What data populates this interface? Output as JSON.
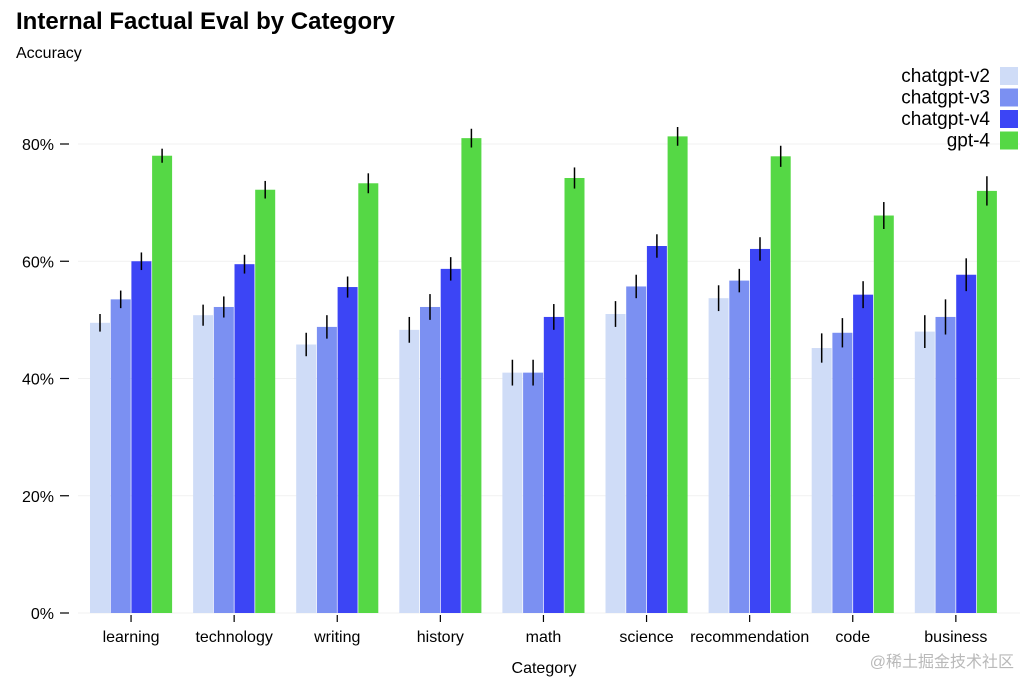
{
  "chart_data": {
    "type": "bar",
    "title": "Internal Factual Eval by Category",
    "ylabel": "Accuracy",
    "xlabel": "Category",
    "ylim": [
      0,
      80
    ],
    "yticks": [
      "0%",
      "20%",
      "40%",
      "60%",
      "80%"
    ],
    "ytick_values": [
      0,
      20,
      40,
      60,
      80
    ],
    "grid": true,
    "legend_position": "top-right",
    "categories": [
      "learning",
      "technology",
      "writing",
      "history",
      "math",
      "science",
      "recommendation",
      "code",
      "business"
    ],
    "series": [
      {
        "name": "chatgpt-v2",
        "color": "#cfdcf7",
        "values": [
          49.5,
          50.8,
          45.8,
          48.3,
          41.0,
          51.0,
          53.7,
          45.2,
          48.0
        ],
        "errors": [
          1.5,
          1.8,
          2.0,
          2.2,
          2.2,
          2.2,
          2.2,
          2.5,
          2.8
        ]
      },
      {
        "name": "chatgpt-v3",
        "color": "#7b90f2",
        "values": [
          53.5,
          52.2,
          48.8,
          52.2,
          41.0,
          55.7,
          56.7,
          47.8,
          50.5
        ],
        "errors": [
          1.5,
          1.8,
          2.0,
          2.2,
          2.2,
          2.0,
          2.0,
          2.5,
          3.0
        ]
      },
      {
        "name": "chatgpt-v4",
        "color": "#3c45f5",
        "values": [
          60.0,
          59.5,
          55.6,
          58.7,
          50.5,
          62.6,
          62.1,
          54.3,
          57.7
        ],
        "errors": [
          1.5,
          1.6,
          1.8,
          2.0,
          2.2,
          2.0,
          2.0,
          2.3,
          2.8
        ]
      },
      {
        "name": "gpt-4",
        "color": "#55d845",
        "values": [
          78.0,
          72.2,
          73.3,
          81.0,
          74.2,
          81.3,
          77.9,
          67.8,
          72.0
        ],
        "errors": [
          1.2,
          1.5,
          1.7,
          1.6,
          1.8,
          1.6,
          1.8,
          2.3,
          2.5
        ]
      }
    ]
  },
  "watermark": "@稀土掘金技术社区"
}
